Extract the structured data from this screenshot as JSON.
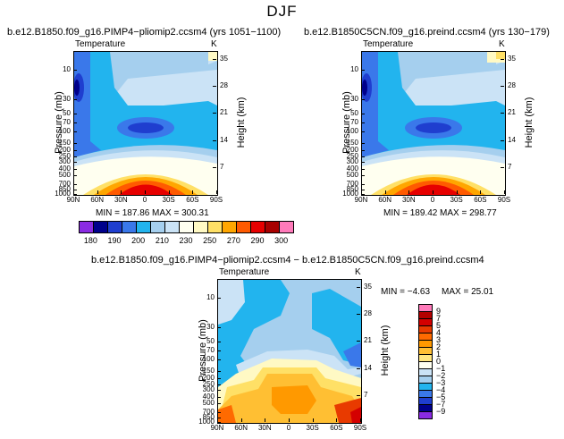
{
  "page": {
    "title": "DJF"
  },
  "panels": [
    {
      "title": "b.e12.B1850.f09_g16.PIMP4−pliomip2.ccsm4  (yrs 1051−1100)",
      "subtitle": "Temperature",
      "units": "K",
      "ylabel_left": "Pressure  (mb)",
      "ylabel_right": "Height  (km)",
      "x_ticks": [
        "90N",
        "60N",
        "30N",
        "0",
        "30S",
        "60S",
        "90S"
      ],
      "p_ticks": [
        "10",
        "30",
        "50",
        "70",
        "100",
        "150",
        "200",
        "250",
        "300",
        "400",
        "500",
        "700",
        "850",
        "1000"
      ],
      "h_ticks": [
        "35",
        "28",
        "21",
        "14",
        "7"
      ],
      "min_label": "MIN = ",
      "min_value": "187.86",
      "max_label": "MAX = ",
      "max_value": "300.31"
    },
    {
      "title": "b.e12.B1850C5CN.f09_g16.preind.ccsm4  (yrs 130−179)",
      "subtitle": "Temperature",
      "units": "K",
      "ylabel_left": "Pressure  (mb)",
      "ylabel_right": "Height  (km)",
      "x_ticks": [
        "90N",
        "60N",
        "30N",
        "0",
        "30S",
        "60S",
        "90S"
      ],
      "p_ticks": [
        "10",
        "30",
        "50",
        "70",
        "100",
        "150",
        "200",
        "250",
        "300",
        "400",
        "500",
        "700",
        "850",
        "1000"
      ],
      "h_ticks": [
        "35",
        "28",
        "21",
        "14",
        "7"
      ],
      "min_label": "MIN = ",
      "min_value": "189.42",
      "max_label": "MAX = ",
      "max_value": "298.77"
    },
    {
      "title": "b.e12.B1850.f09_g16.PIMP4−pliomip2.ccsm4 − b.e12.B1850C5CN.f09_g16.preind.ccsm4",
      "subtitle": "Temperature",
      "units": "K",
      "ylabel_left": "Pressure  (mb)",
      "ylabel_right": "Height  (km)",
      "x_ticks": [
        "90N",
        "60N",
        "30N",
        "0",
        "30S",
        "60S",
        "90S"
      ],
      "p_ticks": [
        "10",
        "30",
        "50",
        "70",
        "100",
        "150",
        "200",
        "250",
        "300",
        "400",
        "500",
        "700",
        "850",
        "1000"
      ],
      "h_ticks": [
        "35",
        "28",
        "21",
        "14",
        "7"
      ],
      "min_label": "MIN = ",
      "min_value": "−4.63",
      "max_label": "MAX = ",
      "max_value": "25.01"
    }
  ],
  "colorbar_abs": {
    "labels": [
      "180",
      "190",
      "200",
      "210",
      "230",
      "250",
      "270",
      "290",
      "300"
    ],
    "colors": [
      "#8a2be2",
      "#00008b",
      "#1f3ecf",
      "#3a78ea",
      "#22b4ee",
      "#a5cfee",
      "#cbe3f6",
      "#fffff0",
      "#fff9c4",
      "#ffe066",
      "#ffa600",
      "#ff5a00",
      "#e60000",
      "#a80000",
      "#ff7aba"
    ]
  },
  "colorbar_diff": {
    "labels": [
      "9",
      "7",
      "5",
      "4",
      "3",
      "2",
      "1",
      "0",
      "−1",
      "−2",
      "−3",
      "−4",
      "−5",
      "−7",
      "−9"
    ],
    "colors": [
      "#ff7aba",
      "#b30000",
      "#d40000",
      "#e83a00",
      "#ff6a00",
      "#ff9900",
      "#ffbf33",
      "#ffe680",
      "#fffff0",
      "#cbe3f6",
      "#a5cfee",
      "#22b4ee",
      "#3a78ea",
      "#1f3ecf",
      "#00008b",
      "#8a2be2"
    ]
  },
  "chart_data": [
    {
      "type": "heatmap",
      "title": "b.e12.B1850.f09_g16.PIMP4−pliomip2.ccsm4 (yrs 1051−1100)",
      "variable": "Temperature",
      "units": "K",
      "x": [
        "90N",
        "60N",
        "30N",
        "0",
        "30S",
        "60S",
        "90S"
      ],
      "y_pressure_mb": [
        10,
        30,
        50,
        70,
        100,
        150,
        200,
        250,
        300,
        400,
        500,
        700,
        850,
        1000
      ],
      "y_height_km": [
        7,
        14,
        21,
        28,
        35
      ],
      "min": 187.86,
      "max": 300.31,
      "contour_levels": [
        180,
        190,
        200,
        210,
        230,
        250,
        270,
        290,
        300
      ]
    },
    {
      "type": "heatmap",
      "title": "b.e12.B1850C5CN.f09_g16.preind.ccsm4 (yrs 130−179)",
      "variable": "Temperature",
      "units": "K",
      "x": [
        "90N",
        "60N",
        "30N",
        "0",
        "30S",
        "60S",
        "90S"
      ],
      "y_pressure_mb": [
        10,
        30,
        50,
        70,
        100,
        150,
        200,
        250,
        300,
        400,
        500,
        700,
        850,
        1000
      ],
      "y_height_km": [
        7,
        14,
        21,
        28,
        35
      ],
      "min": 189.42,
      "max": 298.77,
      "contour_levels": [
        180,
        190,
        200,
        210,
        230,
        250,
        270,
        290,
        300
      ]
    },
    {
      "type": "heatmap",
      "title": "b.e12.B1850.f09_g16.PIMP4−pliomip2.ccsm4 − b.e12.B1850C5CN.f09_g16.preind.ccsm4",
      "variable": "Temperature",
      "units": "K",
      "x": [
        "90N",
        "60N",
        "30N",
        "0",
        "30S",
        "60S",
        "90S"
      ],
      "y_pressure_mb": [
        10,
        30,
        50,
        70,
        100,
        150,
        200,
        250,
        300,
        400,
        500,
        700,
        850,
        1000
      ],
      "y_height_km": [
        7,
        14,
        21,
        28,
        35
      ],
      "min": -4.63,
      "max": 25.01,
      "contour_levels": [
        -9,
        -7,
        -5,
        -4,
        -3,
        -2,
        -1,
        0,
        1,
        2,
        3,
        4,
        5,
        7,
        9
      ]
    }
  ]
}
